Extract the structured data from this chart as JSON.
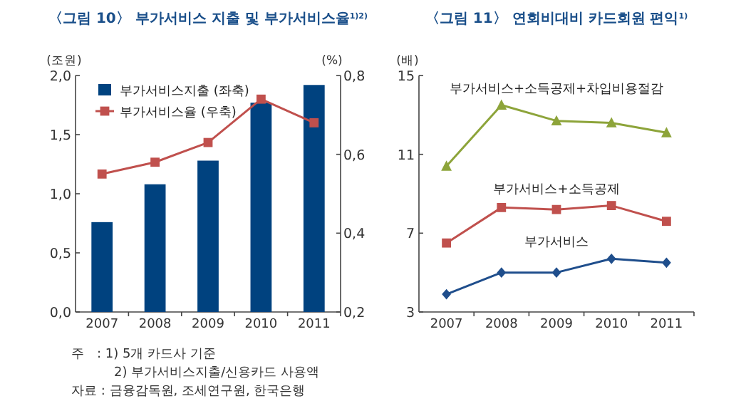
{
  "chart_data": [
    {
      "type": "bar",
      "title": "〈그림 10〉 부가서비스 지출 및 부가서비스율$^{1)2)}$",
      "ylabel": "(조원)",
      "y2label": "(%)",
      "categories": [
        "2007",
        "2008",
        "2009",
        "2010",
        "2011"
      ],
      "series": [
        {
          "name": "부가서비스지출 (좌축)",
          "color": "#00427f",
          "values": [
            0.76,
            1.08,
            1.28,
            1.77,
            1.92
          ]
        },
        {
          "name": "부가서비스율 (우축)",
          "type": "line",
          "axis": "y2",
          "color": "#c0504d",
          "marker": "square",
          "values": [
            0.55,
            0.58,
            0.63,
            0.74,
            0.68
          ]
        }
      ],
      "ylim": [
        0,
        2
      ],
      "yticks": [
        {
          "value": 0,
          "label": "0,0"
        },
        {
          "value": 0.5,
          "label": "0,5"
        },
        {
          "value": 1,
          "label": "1,0"
        },
        {
          "value": 1.5,
          "label": "1,5"
        },
        {
          "value": 2,
          "label": "2,0"
        }
      ],
      "y2lim": [
        0.2,
        0.8
      ],
      "y2ticks": [
        {
          "value": 0.2,
          "label": "0,2"
        },
        {
          "value": 0.4,
          "label": "0,4"
        },
        {
          "value": 0.6,
          "label": "0,6"
        },
        {
          "value": 0.8,
          "label": "0,8"
        }
      ],
      "legend": "top left",
      "grid": false,
      "annotations": [
        "주　: 1) 5개 카드사 기준",
        "2) 부가서비스지출/신용카드 사용액",
        "자료 : 금융감독원, 조세연구원, 한국은행"
      ]
    },
    {
      "type": "line",
      "title": "〈그림 11〉 연회비대비 카드회원 편익$^{1)}$",
      "ylabel": "(배)",
      "categories": [
        "2007",
        "2008",
        "2009",
        "2010",
        "2011"
      ],
      "series": [
        {
          "name": "부가서비스+소득공제+차입비용절감",
          "color": "#8da43a",
          "marker": "triangle",
          "values": [
            10.4,
            13.5,
            12.7,
            12.6,
            12.1
          ]
        },
        {
          "name": "부가서비스+소득공제",
          "color": "#c0504d",
          "marker": "square",
          "values": [
            6.5,
            8.3,
            8.2,
            8.4,
            7.6
          ]
        },
        {
          "name": "부가서비스",
          "color": "#1f4e8c",
          "marker": "diamond",
          "values": [
            3.9,
            5.0,
            5.0,
            5.7,
            5.5
          ]
        }
      ],
      "ylim": [
        3,
        15
      ],
      "yticks": [
        3,
        7,
        11,
        15
      ],
      "grid": false,
      "legend": false
    }
  ]
}
